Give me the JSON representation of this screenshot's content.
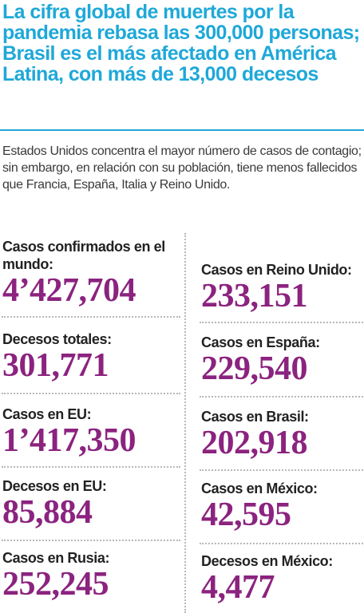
{
  "headline": "La cifra global de muertes por la pandemia rebasa las 300,000 personas; Brasil es el más afectado en América Latina, con más de 13,000 decesos",
  "dek": "Estados Unidos concentra el mayor número de casos de contagio; sin embargo, en relación con su población, tiene menos fallecidos que Francia, España, Italia y Reino Unido.",
  "left_stats": [
    {
      "label": "Casos confirmados en el mundo:",
      "value": "4’427,704"
    },
    {
      "label": "Decesos totales:",
      "value": "301,771"
    },
    {
      "label": "Casos en EU:",
      "value": "1’417,350"
    },
    {
      "label": "Decesos en EU:",
      "value": "85,884"
    },
    {
      "label": "Casos en Rusia:",
      "value": "252,245"
    }
  ],
  "right_stats": [
    {
      "label": "Casos en Reino Unido:",
      "value": "233,151"
    },
    {
      "label": "Casos en España:",
      "value": "229,540"
    },
    {
      "label": "Casos en Brasil:",
      "value": "202,918"
    },
    {
      "label": "Casos en México:",
      "value": "42,595"
    },
    {
      "label": "Decesos en México:",
      "value": "4,477"
    }
  ],
  "colors": {
    "headline": "#1fa8d8",
    "value": "#8b237f",
    "label": "#222222",
    "dek": "#3a3a3a"
  }
}
